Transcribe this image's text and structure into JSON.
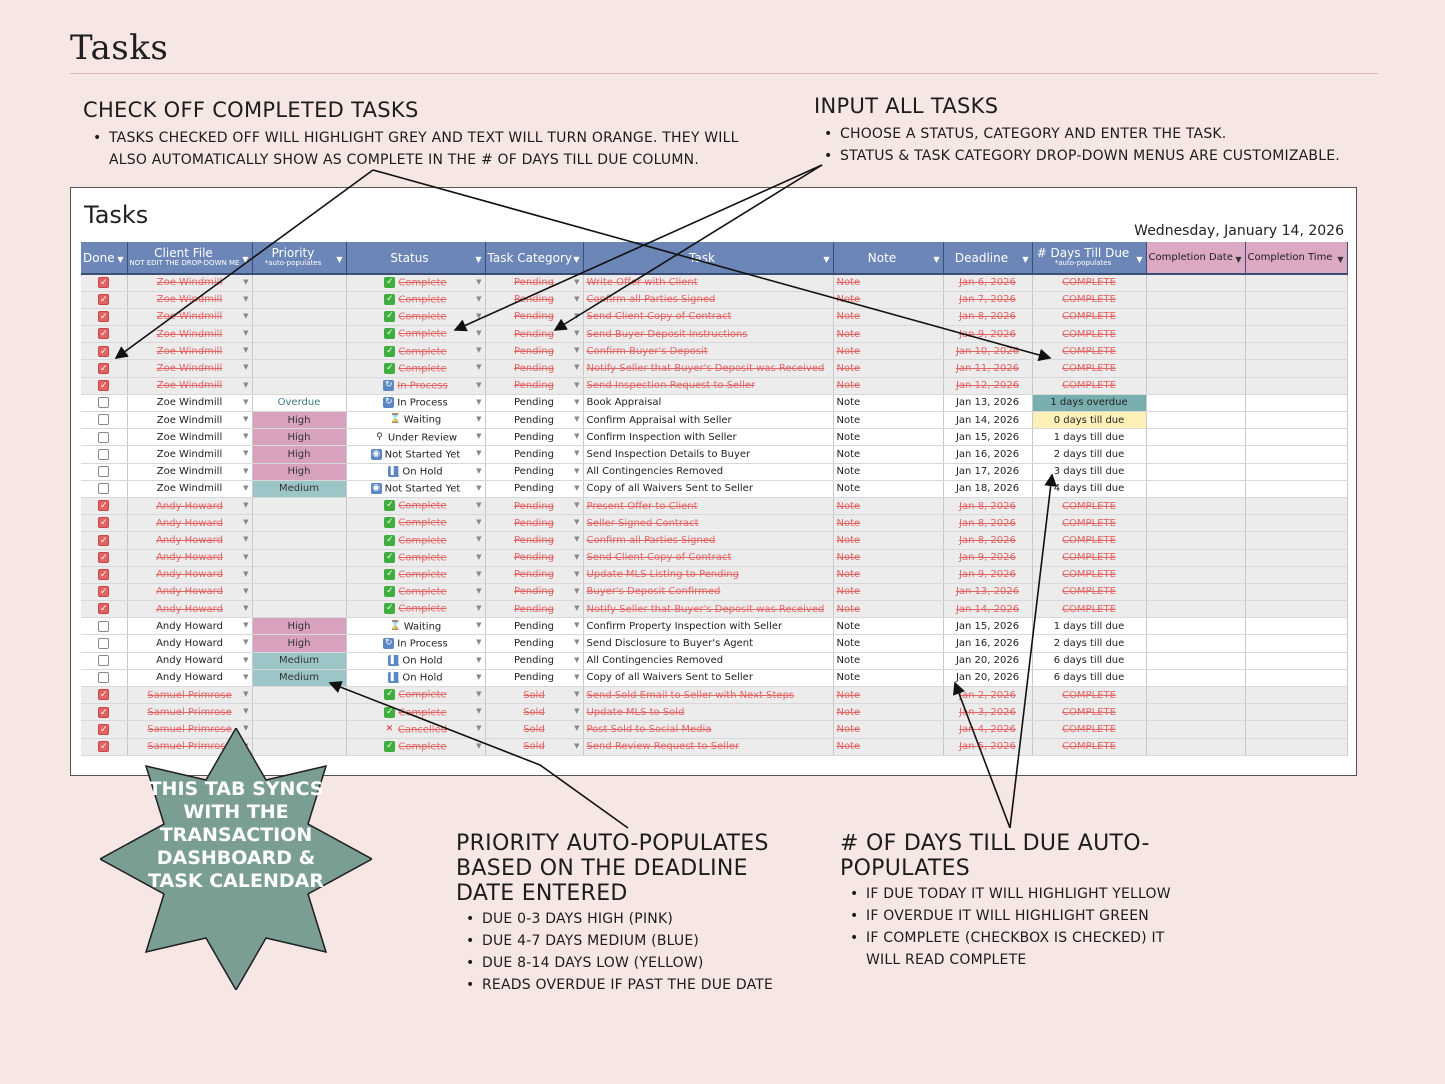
{
  "page_title": "Tasks",
  "annotations": {
    "check_off": {
      "title": "CHECK OFF COMPLETED TASKS",
      "bullets": [
        "TASKS CHECKED OFF WILL HIGHLIGHT GREY AND TEXT WILL TURN ORANGE. THEY WILL ALSO AUTOMATICALLY SHOW AS COMPLETE IN THE # OF DAYS TILL DUE COLUMN."
      ]
    },
    "input_tasks": {
      "title": "INPUT ALL TASKS",
      "bullets": [
        "CHOOSE A STATUS, CATEGORY AND ENTER THE TASK.",
        "STATUS & TASK CATEGORY DROP-DOWN MENUS ARE CUSTOMIZABLE."
      ]
    },
    "priority": {
      "title": "PRIORITY AUTO-POPULATES BASED ON THE DEADLINE DATE ENTERED",
      "bullets": [
        "DUE 0-3 DAYS HIGH (PINK)",
        "DUE 4-7 DAYS MEDIUM (BLUE)",
        "DUE 8-14 DAYS LOW (YELLOW)",
        "READS OVERDUE IF PAST THE DUE DATE"
      ]
    },
    "days_till_due": {
      "title": "# OF DAYS TILL DUE AUTO-POPULATES",
      "bullets": [
        "IF DUE TODAY IT WILL HIGHLIGHT YELLOW",
        "IF OVERDUE IT WILL HIGHLIGHT GREEN",
        "IF COMPLETE (CHECKBOX IS CHECKED) IT WILL READ COMPLETE"
      ]
    },
    "sync_badge": "THIS TAB SYNCS WITH THE TRANSACTION DASHBOARD & TASK CALENDAR"
  },
  "sheet": {
    "title": "Tasks",
    "date": "Wednesday, January 14, 2026",
    "columns": {
      "done": "Done",
      "client": "Client File",
      "client_sub": "NOT EDIT THE DROP-DOWN ME",
      "priority": "Priority",
      "priority_sub": "*auto-populates",
      "status": "Status",
      "category": "Task Category",
      "task": "Task",
      "note": "Note",
      "deadline": "Deadline",
      "days": "# Days Till Due",
      "days_sub": "*auto-populates",
      "completion_date": "Completion Date",
      "completion_time": "Completion Time"
    },
    "rows": [
      {
        "done": true,
        "client": "Zoe Windmill",
        "priority": "",
        "status_icon": "check",
        "status": "Complete",
        "category": "Pending",
        "task": "Write Offer with Client",
        "note": "Note",
        "deadline": "Jan 6, 2026",
        "days": "COMPLETE"
      },
      {
        "done": true,
        "client": "Zoe Windmill",
        "priority": "",
        "status_icon": "check",
        "status": "Complete",
        "category": "Pending",
        "task": "Confirm all Parties Signed",
        "note": "Note",
        "deadline": "Jan 7, 2026",
        "days": "COMPLETE"
      },
      {
        "done": true,
        "client": "Zoe Windmill",
        "priority": "",
        "status_icon": "check",
        "status": "Complete",
        "category": "Pending",
        "task": "Send Client Copy of Contract",
        "note": "Note",
        "deadline": "Jan 8, 2026",
        "days": "COMPLETE"
      },
      {
        "done": true,
        "client": "Zoe Windmill",
        "priority": "",
        "status_icon": "check",
        "status": "Complete",
        "category": "Pending",
        "task": "Send Buyer Deposit Instructions",
        "note": "Note",
        "deadline": "Jan 9, 2026",
        "days": "COMPLETE"
      },
      {
        "done": true,
        "client": "Zoe Windmill",
        "priority": "",
        "status_icon": "check",
        "status": "Complete",
        "category": "Pending",
        "task": "Confirm Buyer's Deposit",
        "note": "Note",
        "deadline": "Jan 10, 2026",
        "days": "COMPLETE"
      },
      {
        "done": true,
        "client": "Zoe Windmill",
        "priority": "",
        "status_icon": "check",
        "status": "Complete",
        "category": "Pending",
        "task": "Notify Seller that Buyer's Deposit was Received",
        "note": "Note",
        "deadline": "Jan 11, 2026",
        "days": "COMPLETE"
      },
      {
        "done": true,
        "client": "Zoe Windmill",
        "priority": "",
        "status_icon": "process",
        "status": "In Process",
        "category": "Pending",
        "task": "Send Inspection Request to Seller",
        "note": "Note",
        "deadline": "Jan 12, 2026",
        "days": "COMPLETE"
      },
      {
        "done": false,
        "client": "Zoe Windmill",
        "priority": "Overdue",
        "status_icon": "process",
        "status": "In Process",
        "category": "Pending",
        "task": "Book Appraisal",
        "note": "Note",
        "deadline": "Jan 13, 2026",
        "days": "1 days overdue"
      },
      {
        "done": false,
        "client": "Zoe Windmill",
        "priority": "High",
        "status_icon": "wait",
        "status": "Waiting",
        "category": "Pending",
        "task": "Confirm Appraisal with Seller",
        "note": "Note",
        "deadline": "Jan 14, 2026",
        "days": "0 days till due"
      },
      {
        "done": false,
        "client": "Zoe Windmill",
        "priority": "High",
        "status_icon": "review",
        "status": "Under Review",
        "category": "Pending",
        "task": "Confirm Inspection with Seller",
        "note": "Note",
        "deadline": "Jan 15, 2026",
        "days": "1 days till due"
      },
      {
        "done": false,
        "client": "Zoe Windmill",
        "priority": "High",
        "status_icon": "notstarted",
        "status": "Not Started Yet",
        "category": "Pending",
        "task": "Send Inspection Details to Buyer",
        "note": "Note",
        "deadline": "Jan 16, 2026",
        "days": "2 days till due"
      },
      {
        "done": false,
        "client": "Zoe Windmill",
        "priority": "High",
        "status_icon": "hold",
        "status": "On Hold",
        "category": "Pending",
        "task": "All Contingencies Removed",
        "note": "Note",
        "deadline": "Jan 17, 2026",
        "days": "3 days till due"
      },
      {
        "done": false,
        "client": "Zoe Windmill",
        "priority": "Medium",
        "status_icon": "notstarted",
        "status": "Not Started Yet",
        "category": "Pending",
        "task": "Copy of all Waivers Sent to Seller",
        "note": "Note",
        "deadline": "Jan 18, 2026",
        "days": "4 days till due"
      },
      {
        "done": true,
        "client": "Andy Howard",
        "priority": "",
        "status_icon": "check",
        "status": "Complete",
        "category": "Pending",
        "task": "Present Offer to Client",
        "note": "Note",
        "deadline": "Jan 8, 2026",
        "days": "COMPLETE"
      },
      {
        "done": true,
        "client": "Andy Howard",
        "priority": "",
        "status_icon": "check",
        "status": "Complete",
        "category": "Pending",
        "task": "Seller Signed Contract",
        "note": "Note",
        "deadline": "Jan 8, 2026",
        "days": "COMPLETE"
      },
      {
        "done": true,
        "client": "Andy Howard",
        "priority": "",
        "status_icon": "check",
        "status": "Complete",
        "category": "Pending",
        "task": "Confirm all Parties Signed",
        "note": "Note",
        "deadline": "Jan 8, 2026",
        "days": "COMPLETE"
      },
      {
        "done": true,
        "client": "Andy Howard",
        "priority": "",
        "status_icon": "check",
        "status": "Complete",
        "category": "Pending",
        "task": "Send Client Copy of Contract",
        "note": "Note",
        "deadline": "Jan 9, 2026",
        "days": "COMPLETE"
      },
      {
        "done": true,
        "client": "Andy Howard",
        "priority": "",
        "status_icon": "check",
        "status": "Complete",
        "category": "Pending",
        "task": "Update MLS Listing to Pending",
        "note": "Note",
        "deadline": "Jan 9, 2026",
        "days": "COMPLETE"
      },
      {
        "done": true,
        "client": "Andy Howard",
        "priority": "",
        "status_icon": "check",
        "status": "Complete",
        "category": "Pending",
        "task": "Buyer's Deposit Confirmed",
        "note": "Note",
        "deadline": "Jan 13, 2026",
        "days": "COMPLETE"
      },
      {
        "done": true,
        "client": "Andy Howard",
        "priority": "",
        "status_icon": "check",
        "status": "Complete",
        "category": "Pending",
        "task": "Notify Seller that Buyer's Deposit was Received",
        "note": "Note",
        "deadline": "Jan 14, 2026",
        "days": "COMPLETE"
      },
      {
        "done": false,
        "client": "Andy Howard",
        "priority": "High",
        "status_icon": "wait",
        "status": "Waiting",
        "category": "Pending",
        "task": "Confirm Property Inspection with Seller",
        "note": "Note",
        "deadline": "Jan 15, 2026",
        "days": "1 days till due"
      },
      {
        "done": false,
        "client": "Andy Howard",
        "priority": "High",
        "status_icon": "process",
        "status": "In Process",
        "category": "Pending",
        "task": "Send Disclosure to Buyer's Agent",
        "note": "Note",
        "deadline": "Jan 16, 2026",
        "days": "2 days till due"
      },
      {
        "done": false,
        "client": "Andy Howard",
        "priority": "Medium",
        "status_icon": "hold",
        "status": "On Hold",
        "category": "Pending",
        "task": "All Contingencies Removed",
        "note": "Note",
        "deadline": "Jan 20, 2026",
        "days": "6 days till due"
      },
      {
        "done": false,
        "client": "Andy Howard",
        "priority": "Medium",
        "status_icon": "hold",
        "status": "On Hold",
        "category": "Pending",
        "task": "Copy of all Waivers Sent to Seller",
        "note": "Note",
        "deadline": "Jan 20, 2026",
        "days": "6 days till due"
      },
      {
        "done": true,
        "client": "Samuel Primrose",
        "priority": "",
        "status_icon": "check",
        "status": "Complete",
        "category": "Sold",
        "task": "Send Sold Email to Seller with Next Steps",
        "note": "Note",
        "deadline": "Jan 2, 2026",
        "days": "COMPLETE"
      },
      {
        "done": true,
        "client": "Samuel Primrose",
        "priority": "",
        "status_icon": "check",
        "status": "Complete",
        "category": "Sold",
        "task": "Update MLS to Sold",
        "note": "Note",
        "deadline": "Jan 3, 2026",
        "days": "COMPLETE"
      },
      {
        "done": true,
        "client": "Samuel Primrose",
        "priority": "",
        "status_icon": "cancel",
        "status": "Cancelled",
        "category": "Sold",
        "task": "Post Sold to Social Media",
        "note": "Note",
        "deadline": "Jan 4, 2026",
        "days": "COMPLETE"
      },
      {
        "done": true,
        "client": "Samuel Primrose",
        "priority": "",
        "status_icon": "check",
        "status": "Complete",
        "category": "Sold",
        "task": "Send Review Request to Seller",
        "note": "Note",
        "deadline": "Jan 5, 2026",
        "days": "COMPLETE"
      }
    ]
  },
  "colors": {
    "background": "#f6e6e4",
    "header_blue": "#6c86b8",
    "header_pink": "#dca8c4",
    "priority_high": "#d8a2be",
    "priority_medium": "#9cc5c7",
    "overdue": "#79aeae",
    "due_today": "#fff0b8",
    "done_text": "#e26565",
    "badge": "#7a9e94"
  }
}
